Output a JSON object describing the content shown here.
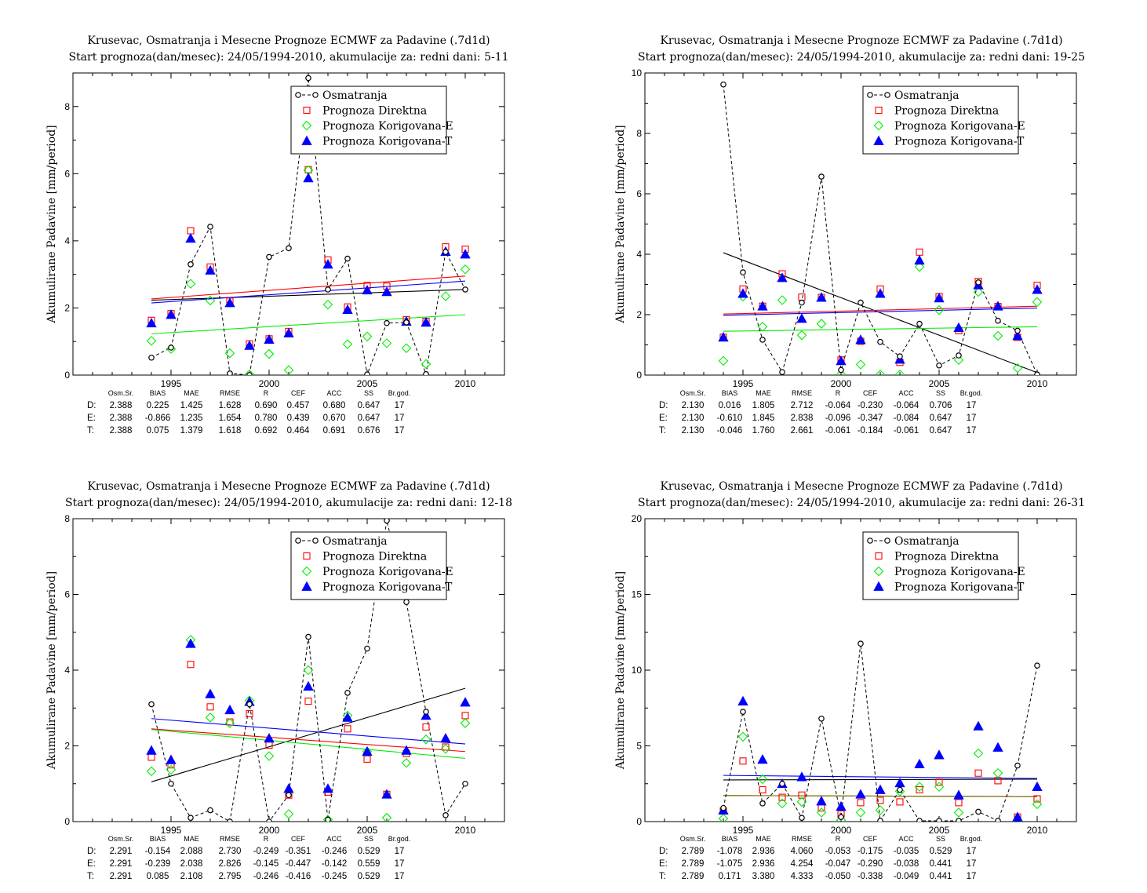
{
  "colors": {
    "observed": "#000000",
    "direct": "#ff0000",
    "corr_e": "#00ee00",
    "corr_t": "#0000ff",
    "trend_extra": "#8b6914"
  },
  "legend": {
    "observed": "Osmatranja",
    "direct": "Prognoza Direktna",
    "corr_e": "Prognoza Korigovana-E",
    "corr_t": "Prognoza Korigovana-T"
  },
  "stat_headers": [
    "Osm.Sr.",
    "BIAS",
    "MAE",
    "RMSE",
    "R",
    "CEF",
    "ACC",
    "SS",
    "Br.god."
  ],
  "chart_data": [
    {
      "type": "scatter",
      "title": "Krusevac, Osmatranja i Mesecne Prognoze ECMWF za Padavine (.7d1d)",
      "subtitle": "Start prognoza(dan/mesec): 24/05/1994-2010, akumulacije za: redni dani: 5-11",
      "ylabel": "Akumulirane Padavine [mm/period]",
      "xlim": [
        1990,
        2012
      ],
      "ylim": [
        0,
        9
      ],
      "xticks": [
        1995,
        2000,
        2005,
        2010
      ],
      "yticks": [
        0,
        2,
        4,
        6,
        8
      ],
      "x": [
        1994,
        1995,
        1996,
        1997,
        1998,
        1999,
        2000,
        2001,
        2002,
        2003,
        2004,
        2005,
        2006,
        2007,
        2008,
        2009,
        2010
      ],
      "series": [
        {
          "name": "Osmatranja",
          "values": [
            0.52,
            0.82,
            3.3,
            4.42,
            0.05,
            0.0,
            3.52,
            3.78,
            8.85,
            2.55,
            3.47,
            0.02,
            1.55,
            1.57,
            0.03,
            3.67,
            2.55
          ]
        },
        {
          "name": "Prognoza Direktna",
          "values": [
            1.63,
            1.83,
            4.3,
            3.22,
            2.2,
            0.93,
            1.08,
            1.3,
            6.12,
            3.43,
            2.03,
            2.67,
            2.65,
            1.65,
            1.6,
            3.82,
            3.75
          ]
        },
        {
          "name": "Prognoza Korigovana-E",
          "values": [
            1.02,
            0.78,
            2.72,
            2.22,
            0.65,
            0.02,
            0.63,
            0.15,
            6.1,
            2.1,
            0.92,
            1.15,
            0.95,
            0.8,
            0.33,
            2.35,
            3.15
          ]
        },
        {
          "name": "Prognoza Korigovana-T",
          "values": [
            1.55,
            1.8,
            4.07,
            3.12,
            2.15,
            0.88,
            1.06,
            1.25,
            5.87,
            3.3,
            1.95,
            2.53,
            2.48,
            1.6,
            1.57,
            3.68,
            3.6
          ]
        }
      ],
      "trends": [
        {
          "series": "observed",
          "y": [
            2.23,
            2.55
          ]
        },
        {
          "series": "direct",
          "y": [
            2.27,
            2.95
          ]
        },
        {
          "series": "corr_e",
          "y": [
            1.23,
            1.8
          ]
        },
        {
          "series": "corr_t",
          "y": [
            2.15,
            2.8
          ]
        }
      ],
      "legend_position": "top-right",
      "stats": [
        {
          "label": "D:",
          "values": [
            "2.388",
            "0.225",
            "1.425",
            "1.628",
            "0.690",
            "0.457",
            "0.680",
            "0.647",
            "17"
          ]
        },
        {
          "label": "E:",
          "values": [
            "2.388",
            "-0.866",
            "1.235",
            "1.654",
            "0.780",
            "0.439",
            "0.670",
            "0.647",
            "17"
          ]
        },
        {
          "label": "T:",
          "values": [
            "2.388",
            "0.075",
            "1.379",
            "1.618",
            "0.692",
            "0.464",
            "0.691",
            "0.676",
            "17"
          ]
        }
      ]
    },
    {
      "type": "scatter",
      "title": "Krusevac, Osmatranja i Mesecne Prognoze ECMWF za Padavine (.7d1d)",
      "subtitle": "Start prognoza(dan/mesec): 24/05/1994-2010, akumulacije za: redni dani: 19-25",
      "ylabel": "Akumulirane Padavine [mm/period]",
      "xlim": [
        1990,
        2012
      ],
      "ylim": [
        0,
        10
      ],
      "xticks": [
        1995,
        2000,
        2005,
        2010
      ],
      "yticks": [
        0,
        2,
        4,
        6,
        8,
        10
      ],
      "x": [
        1994,
        1995,
        1996,
        1997,
        1998,
        1999,
        2000,
        2001,
        2002,
        2003,
        2004,
        2005,
        2006,
        2007,
        2008,
        2009,
        2010
      ],
      "series": [
        {
          "name": "Osmatranja",
          "values": [
            9.62,
            3.4,
            1.17,
            0.1,
            2.4,
            6.57,
            0.17,
            2.4,
            1.1,
            0.62,
            1.7,
            0.32,
            0.65,
            3.07,
            1.8,
            1.47,
            0.02
          ]
        },
        {
          "name": "Prognoza Direktna",
          "values": [
            1.25,
            2.85,
            2.28,
            3.35,
            2.58,
            2.57,
            0.5,
            1.12,
            2.85,
            0.42,
            4.07,
            2.6,
            1.47,
            3.1,
            2.27,
            1.25,
            2.97
          ]
        },
        {
          "name": "Prognoza Korigovana-E",
          "values": [
            0.47,
            2.6,
            1.6,
            2.48,
            1.32,
            1.7,
            0.02,
            0.35,
            0.02,
            0.02,
            3.58,
            2.15,
            0.5,
            2.75,
            1.3,
            0.23,
            2.42
          ]
        },
        {
          "name": "Prognoza Korigovana-T",
          "values": [
            1.25,
            2.7,
            2.28,
            3.22,
            1.87,
            2.57,
            0.47,
            1.17,
            2.7,
            0.52,
            3.8,
            2.55,
            1.57,
            2.98,
            2.28,
            1.3,
            2.83
          ]
        }
      ],
      "trends": [
        {
          "series": "observed",
          "y": [
            4.05,
            0.08
          ]
        },
        {
          "series": "direct",
          "y": [
            2.02,
            2.28
          ]
        },
        {
          "series": "corr_e",
          "y": [
            1.45,
            1.6
          ]
        },
        {
          "series": "corr_t",
          "y": [
            1.98,
            2.22
          ]
        }
      ],
      "legend_position": "top-right",
      "stats": [
        {
          "label": "D:",
          "values": [
            "2.130",
            "0.016",
            "1.805",
            "2.712",
            "-0.064",
            "-0.230",
            "-0.064",
            "0.706",
            "17"
          ]
        },
        {
          "label": "E:",
          "values": [
            "2.130",
            "-0.610",
            "1.845",
            "2.838",
            "-0.096",
            "-0.347",
            "-0.084",
            "0.647",
            "17"
          ]
        },
        {
          "label": "T:",
          "values": [
            "2.130",
            "-0.046",
            "1.760",
            "2.661",
            "-0.061",
            "-0.184",
            "-0.061",
            "0.647",
            "17"
          ]
        }
      ]
    },
    {
      "type": "scatter",
      "title": "Krusevac, Osmatranja i Mesecne Prognoze ECMWF za Padavine (.7d1d)",
      "subtitle": "Start prognoza(dan/mesec): 24/05/1994-2010, akumulacije za: redni dani: 12-18",
      "ylabel": "Akumulirane Padavine [mm/period]",
      "xlim": [
        1990,
        2012
      ],
      "ylim": [
        0,
        8
      ],
      "xticks": [
        1995,
        2000,
        2005,
        2010
      ],
      "yticks": [
        0,
        2,
        4,
        6,
        8
      ],
      "x": [
        1994,
        1995,
        1996,
        1997,
        1998,
        1999,
        2000,
        2001,
        2002,
        2003,
        2004,
        2005,
        2006,
        2007,
        2008,
        2009,
        2010
      ],
      "series": [
        {
          "name": "Osmatranja",
          "values": [
            3.1,
            1.0,
            0.1,
            0.3,
            0.0,
            3.1,
            0.0,
            0.7,
            4.88,
            0.05,
            3.4,
            4.57,
            7.95,
            5.8,
            2.9,
            0.17,
            1.0
          ]
        },
        {
          "name": "Prognoza Direktna",
          "values": [
            1.7,
            1.5,
            4.15,
            3.03,
            2.63,
            2.85,
            2.02,
            0.7,
            3.18,
            0.78,
            2.45,
            1.65,
            0.72,
            1.8,
            2.5,
            1.97,
            2.8
          ]
        },
        {
          "name": "Prognoza Korigovana-E",
          "values": [
            1.33,
            1.37,
            4.8,
            2.75,
            2.6,
            3.2,
            1.73,
            0.2,
            4.0,
            0.05,
            2.8,
            1.85,
            0.1,
            1.55,
            2.17,
            1.92,
            2.6
          ]
        },
        {
          "name": "Prognoza Korigovana-T",
          "values": [
            1.88,
            1.63,
            4.7,
            3.37,
            2.95,
            3.17,
            2.2,
            0.87,
            3.57,
            0.87,
            2.75,
            1.85,
            0.72,
            1.88,
            2.8,
            2.2,
            3.15
          ]
        }
      ],
      "trends": [
        {
          "series": "observed",
          "y": [
            1.05,
            3.52
          ]
        },
        {
          "series": "direct",
          "y": [
            2.45,
            1.85
          ]
        },
        {
          "series": "corr_e",
          "y": [
            2.43,
            1.67
          ]
        },
        {
          "series": "corr_t",
          "y": [
            2.72,
            2.05
          ]
        }
      ],
      "legend_position": "top-right",
      "stats": [
        {
          "label": "D:",
          "values": [
            "2.291",
            "-0.154",
            "2.088",
            "2.730",
            "-0.249",
            "-0.351",
            "-0.246",
            "0.529",
            "17"
          ]
        },
        {
          "label": "E:",
          "values": [
            "2.291",
            "-0.239",
            "2.038",
            "2.826",
            "-0.145",
            "-0.447",
            "-0.142",
            "0.559",
            "17"
          ]
        },
        {
          "label": "T:",
          "values": [
            "2.291",
            "0.085",
            "2.108",
            "2.795",
            "-0.246",
            "-0.416",
            "-0.245",
            "0.529",
            "17"
          ]
        }
      ]
    },
    {
      "type": "scatter",
      "title": "Krusevac, Osmatranja i Mesecne Prognoze ECMWF za Padavine (.7d1d)",
      "subtitle": "Start prognoza(dan/mesec): 24/05/1994-2010, akumulacije za: redni dani: 26-31",
      "ylabel": "Akumulirane Padavine [mm/period]",
      "xlim": [
        1990,
        2012
      ],
      "ylim": [
        0,
        20
      ],
      "xticks": [
        1995,
        2000,
        2005,
        2010
      ],
      "yticks": [
        0,
        5,
        10,
        15,
        20
      ],
      "x": [
        1994,
        1995,
        1996,
        1997,
        1998,
        1999,
        2000,
        2001,
        2002,
        2003,
        2004,
        2005,
        2006,
        2007,
        2008,
        2009,
        2010
      ],
      "series": [
        {
          "name": "Osmatranja",
          "values": [
            0.9,
            7.25,
            1.2,
            2.5,
            0.25,
            6.8,
            0.3,
            11.75,
            0.05,
            2.1,
            0.05,
            0.05,
            0.05,
            0.65,
            0.05,
            3.7,
            10.3
          ]
        },
        {
          "name": "Prognoza Direktna",
          "values": [
            0.7,
            4.0,
            2.1,
            1.6,
            1.75,
            0.9,
            0.5,
            1.25,
            1.4,
            1.3,
            2.1,
            2.6,
            1.25,
            3.2,
            2.7,
            0.3,
            1.5
          ]
        },
        {
          "name": "Prognoza Korigovana-E",
          "values": [
            0.2,
            5.6,
            2.8,
            1.2,
            1.3,
            0.6,
            0.1,
            0.6,
            0.75,
            2.0,
            2.3,
            2.3,
            0.6,
            4.5,
            3.2,
            0.05,
            1.15
          ]
        },
        {
          "name": "Prognoza Korigovana-T",
          "values": [
            0.75,
            7.95,
            4.1,
            2.5,
            2.95,
            1.35,
            1.0,
            1.8,
            2.1,
            2.55,
            3.8,
            4.4,
            1.75,
            6.3,
            4.9,
            0.3,
            2.3
          ]
        }
      ],
      "trends": [
        {
          "series": "observed",
          "y": [
            2.75,
            2.8
          ]
        },
        {
          "series": "direct",
          "y": [
            1.72,
            1.65
          ]
        },
        {
          "series": "corr_e",
          "y": [
            1.72,
            1.65
          ]
        },
        {
          "series": "corr_t",
          "y": [
            3.05,
            2.85
          ]
        },
        {
          "series": "trend_extra",
          "y": [
            1.72,
            1.65
          ]
        }
      ],
      "legend_position": "top-right",
      "stats": [
        {
          "label": "D:",
          "values": [
            "2.789",
            "-1.078",
            "2.936",
            "4.060",
            "-0.053",
            "-0.175",
            "-0.035",
            "0.529",
            "17"
          ]
        },
        {
          "label": "E:",
          "values": [
            "2.789",
            "-1.075",
            "2.936",
            "4.254",
            "-0.047",
            "-0.290",
            "-0.038",
            "0.441",
            "17"
          ]
        },
        {
          "label": "T:",
          "values": [
            "2.789",
            "0.171",
            "3.380",
            "4.333",
            "-0.050",
            "-0.338",
            "-0.049",
            "0.441",
            "17"
          ]
        }
      ]
    }
  ]
}
